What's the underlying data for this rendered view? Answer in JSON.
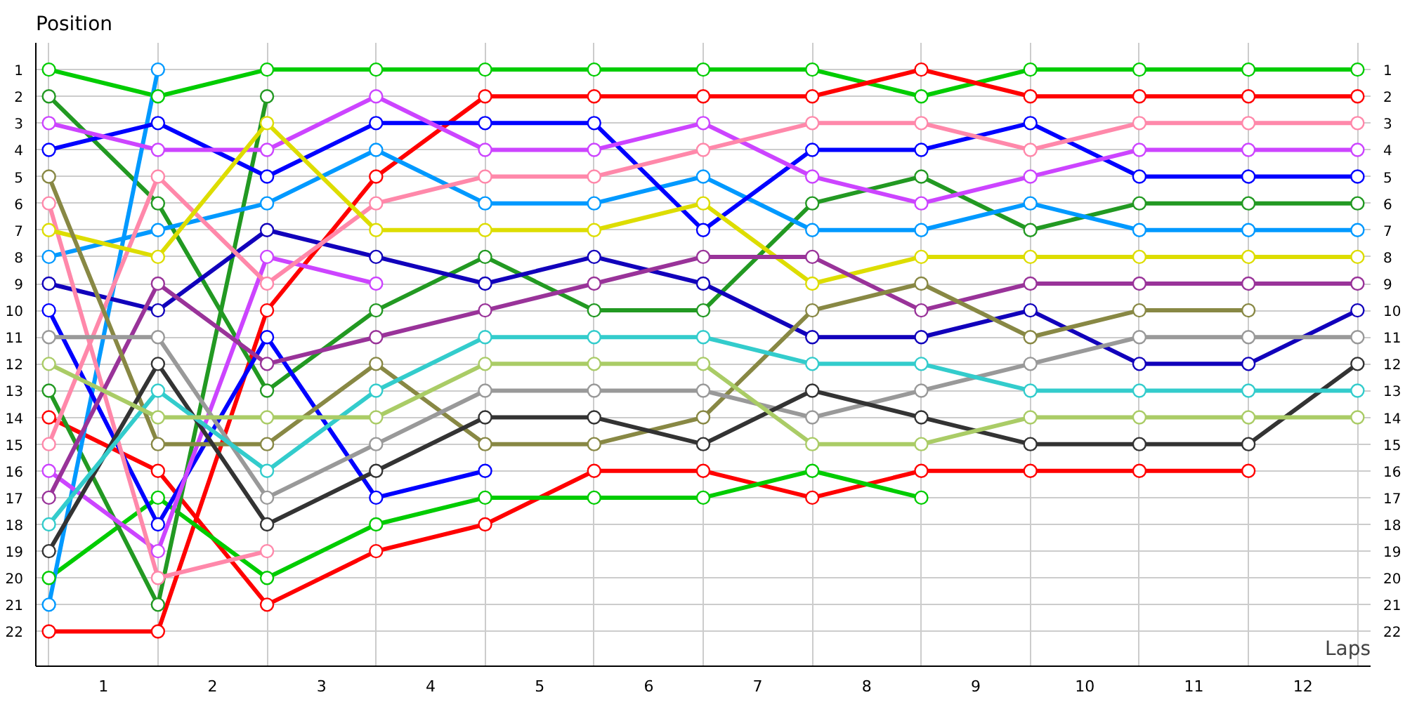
{
  "chart_data": {
    "type": "line",
    "xlabel": "Laps",
    "ylabel": "Position",
    "x": [
      0,
      1,
      2,
      3,
      4,
      5,
      6,
      7,
      8,
      9,
      10,
      11,
      12
    ],
    "xlim": [
      -0.12,
      12.12
    ],
    "ylim": [
      23.3,
      0
    ],
    "xticks": [
      {
        "value": 0,
        "label": null
      },
      {
        "value": 1,
        "label": null
      },
      {
        "value": 2,
        "label": null
      },
      {
        "value": 3,
        "label": null
      },
      {
        "value": 4,
        "label": null
      },
      {
        "value": 5,
        "label": null
      },
      {
        "value": 6,
        "label": null
      },
      {
        "value": 7,
        "label": null
      },
      {
        "value": 8,
        "label": null
      },
      {
        "value": 9,
        "label": null
      },
      {
        "value": 10,
        "label": null
      },
      {
        "value": 11,
        "label": null
      },
      {
        "value": 12,
        "label": null
      },
      {
        "value": 0.5,
        "label": "1"
      },
      {
        "value": 1.5,
        "label": "2"
      },
      {
        "value": 2.5,
        "label": "3"
      },
      {
        "value": 3.5,
        "label": "4"
      },
      {
        "value": 4.5,
        "label": "5"
      },
      {
        "value": 5.5,
        "label": "6"
      },
      {
        "value": 6.5,
        "label": "7"
      },
      {
        "value": 7.5,
        "label": "8"
      },
      {
        "value": 8.5,
        "label": "9"
      },
      {
        "value": 9.5,
        "label": "10"
      },
      {
        "value": 10.5,
        "label": "11"
      },
      {
        "value": 11.5,
        "label": "12"
      }
    ],
    "yticks": [
      1,
      2,
      3,
      4,
      5,
      6,
      7,
      8,
      9,
      10,
      11,
      12,
      13,
      14,
      15,
      16,
      17,
      18,
      19,
      20,
      21,
      22
    ],
    "y2lim": [
      23.3,
      0
    ],
    "y2ticks": [
      1,
      2,
      3,
      4,
      5,
      6,
      7,
      8,
      9,
      10,
      11,
      12,
      13,
      14,
      15,
      16,
      17,
      18,
      19,
      20,
      21,
      22
    ],
    "grid": true,
    "marker": "circle",
    "line_style": "solid",
    "series": [
      {
        "color": "#00cc00",
        "values": [
          1,
          2,
          1,
          1,
          1,
          1,
          1,
          1,
          2,
          1,
          1,
          1,
          1
        ]
      },
      {
        "color": "#ff0000",
        "values": [
          22,
          22,
          10,
          5,
          2,
          2,
          2,
          2,
          1,
          2,
          2,
          2,
          2
        ]
      },
      {
        "color": "#ff0000",
        "values": [
          14,
          16,
          21,
          19,
          18,
          16,
          16,
          17,
          16,
          16,
          16,
          16,
          null
        ]
      },
      {
        "color": "#00cc00",
        "values": [
          20,
          17,
          20,
          18,
          17,
          17,
          17,
          16,
          17,
          null,
          null,
          null,
          null
        ]
      },
      {
        "color": "#229922",
        "values": [
          2,
          6,
          13,
          10,
          8,
          10,
          10,
          6,
          5,
          7,
          6,
          6,
          6
        ]
      },
      {
        "color": "#229922",
        "values": [
          13,
          21,
          2,
          null,
          null,
          null,
          null,
          null,
          null,
          null,
          null,
          null,
          null
        ]
      },
      {
        "color": "#0099ff",
        "values": [
          21,
          1,
          null,
          null,
          null,
          null,
          null,
          null,
          null,
          null,
          null,
          null,
          null
        ]
      },
      {
        "color": "#0099ff",
        "values": [
          8,
          7,
          6,
          4,
          6,
          6,
          5,
          7,
          7,
          6,
          7,
          7,
          7
        ]
      },
      {
        "color": "#0000ff",
        "values": [
          4,
          3,
          5,
          3,
          3,
          3,
          7,
          4,
          4,
          3,
          5,
          5,
          5
        ]
      },
      {
        "color": "#0000ff",
        "values": [
          10,
          18,
          11,
          17,
          16,
          null,
          null,
          null,
          null,
          null,
          null,
          null,
          null
        ]
      },
      {
        "color": "#1100bb",
        "values": [
          9,
          10,
          7,
          8,
          9,
          8,
          9,
          11,
          11,
          10,
          12,
          12,
          10
        ]
      },
      {
        "color": "#cc44ff",
        "values": [
          3,
          4,
          4,
          2,
          4,
          4,
          3,
          5,
          6,
          5,
          4,
          4,
          4
        ]
      },
      {
        "color": "#cc44ff",
        "values": [
          16,
          19,
          8,
          9,
          null,
          null,
          null,
          null,
          null,
          null,
          null,
          null,
          null
        ]
      },
      {
        "color": "#ff88aa",
        "values": [
          15,
          5,
          9,
          6,
          5,
          5,
          4,
          3,
          3,
          4,
          3,
          3,
          3
        ]
      },
      {
        "color": "#ff88aa",
        "values": [
          6,
          20,
          19,
          null,
          null,
          null,
          null,
          null,
          null,
          null,
          null,
          null,
          null
        ]
      },
      {
        "color": "#dddd00",
        "values": [
          7,
          8,
          3,
          7,
          7,
          7,
          6,
          9,
          8,
          8,
          8,
          8,
          8
        ]
      },
      {
        "color": "#993399",
        "values": [
          17,
          9,
          12,
          11,
          10,
          9,
          8,
          8,
          10,
          9,
          9,
          9,
          9
        ]
      },
      {
        "color": "#888844",
        "values": [
          5,
          15,
          15,
          12,
          15,
          15,
          14,
          10,
          9,
          11,
          10,
          10,
          null
        ]
      },
      {
        "color": "#999999",
        "values": [
          11,
          11,
          17,
          15,
          13,
          13,
          13,
          14,
          13,
          12,
          11,
          11,
          11
        ]
      },
      {
        "color": "#333333",
        "values": [
          19,
          12,
          18,
          16,
          14,
          14,
          15,
          13,
          14,
          15,
          15,
          15,
          12
        ]
      },
      {
        "color": "#33cccc",
        "values": [
          18,
          13,
          16,
          13,
          11,
          11,
          11,
          12,
          12,
          13,
          13,
          13,
          13
        ]
      },
      {
        "color": "#aacc66",
        "values": [
          12,
          14,
          14,
          14,
          12,
          12,
          12,
          15,
          15,
          14,
          14,
          14,
          14
        ]
      }
    ]
  }
}
